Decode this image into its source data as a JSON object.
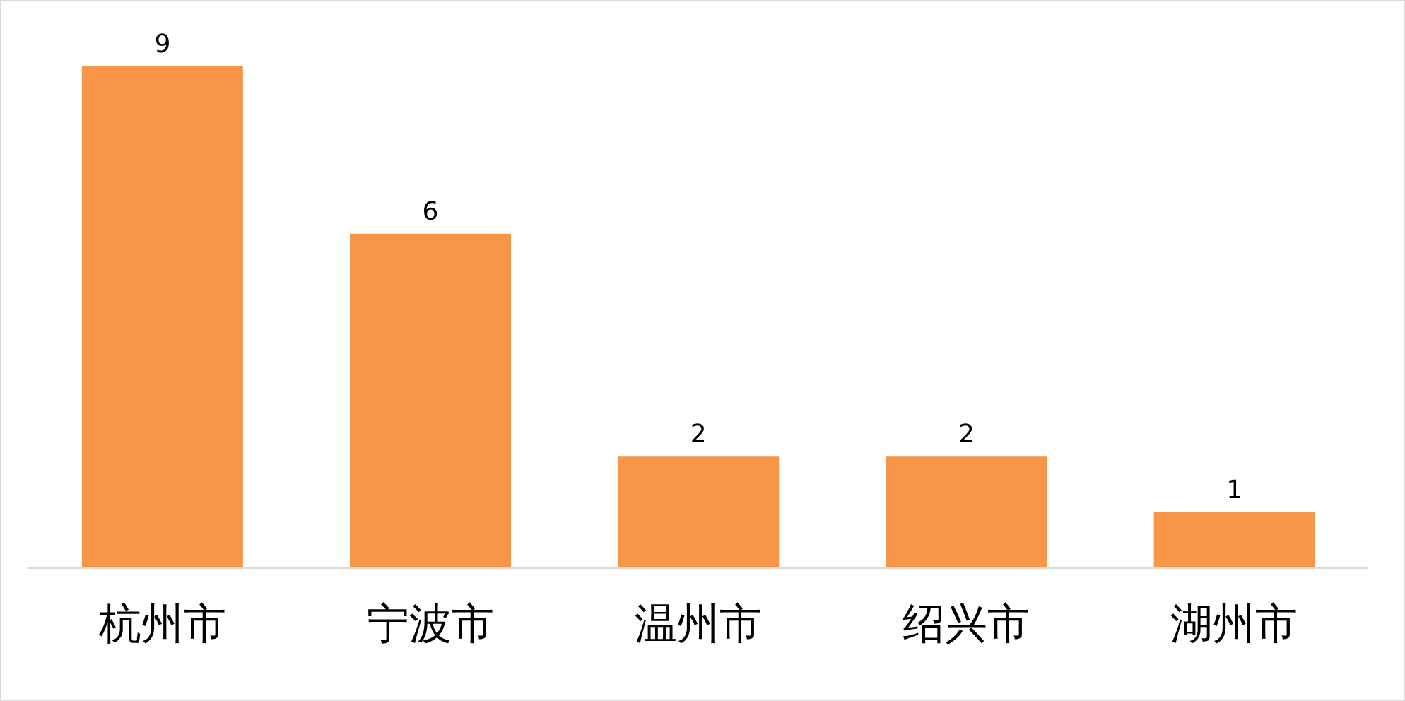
{
  "chart_data": {
    "type": "bar",
    "categories": [
      "杭州市",
      "宁波市",
      "温州市",
      "绍兴市",
      "湖州市"
    ],
    "values": [
      9,
      6,
      2,
      2,
      1
    ],
    "color": "#f79646",
    "data_labels": true
  }
}
